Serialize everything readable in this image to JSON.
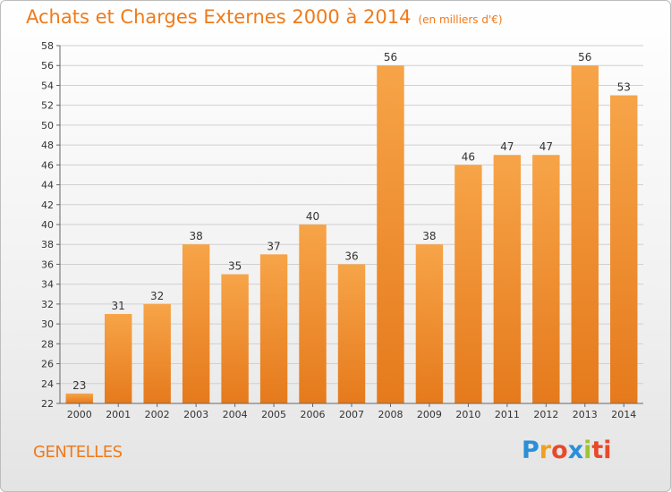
{
  "header": {
    "title": "Achats et Charges Externes 2000 à 2014",
    "subtitle": "(en milliers d'€)"
  },
  "footer": {
    "commune": "GENTELLES",
    "logo_letters": [
      "P",
      "r",
      "o",
      "x",
      "i",
      "ti"
    ]
  },
  "colors": {
    "bar_top": "#f7a448",
    "bar_bottom": "#e57a1c",
    "title": "#f07a1a",
    "grid": "#d0d0d0"
  },
  "chart_data": {
    "type": "bar",
    "title": "Achats et Charges Externes 2000 à 2014",
    "subtitle": "(en milliers d'€)",
    "categories": [
      "2000",
      "2001",
      "2002",
      "2003",
      "2004",
      "2005",
      "2006",
      "2007",
      "2008",
      "2009",
      "2010",
      "2011",
      "2012",
      "2013",
      "2014"
    ],
    "values": [
      23,
      31,
      32,
      38,
      35,
      37,
      40,
      36,
      56,
      38,
      46,
      47,
      47,
      56,
      53
    ],
    "ylim": [
      22,
      58
    ],
    "yticks": [
      22,
      24,
      26,
      28,
      30,
      32,
      34,
      36,
      38,
      40,
      42,
      44,
      46,
      48,
      50,
      52,
      54,
      56,
      58
    ],
    "grid": true,
    "data_labels": true
  }
}
